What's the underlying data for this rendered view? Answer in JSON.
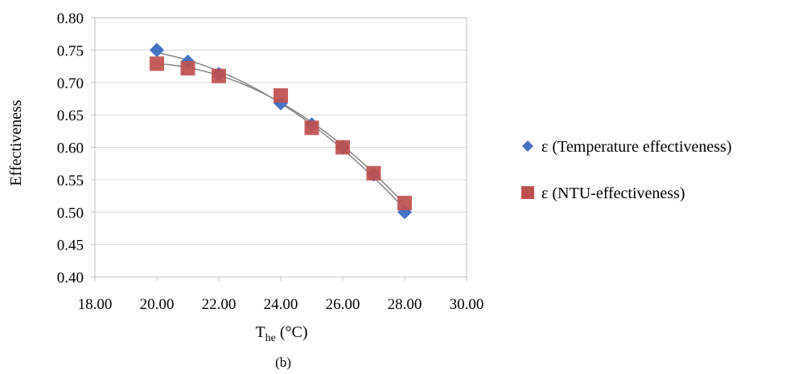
{
  "figure": {
    "caption": "(b)"
  },
  "chart_data": {
    "type": "scatter",
    "title": "",
    "xlabel": "T",
    "xlabel_sub": "he",
    "xlabel_unit": " (°C)",
    "ylabel": "Effectiveness",
    "xlim": [
      18,
      30
    ],
    "ylim": [
      0.4,
      0.8
    ],
    "x_ticks": [
      18,
      20,
      22,
      24,
      26,
      28,
      30
    ],
    "y_ticks": [
      0.4,
      0.45,
      0.5,
      0.55,
      0.6,
      0.65,
      0.7,
      0.75,
      0.8
    ],
    "x_tick_labels": [
      "18.00",
      "20.00",
      "22.00",
      "24.00",
      "26.00",
      "28.00",
      "30.00"
    ],
    "y_tick_labels": [
      "0.40",
      "0.45",
      "0.50",
      "0.55",
      "0.60",
      "0.65",
      "0.70",
      "0.75",
      "0.80"
    ],
    "legend_position": "right",
    "series": [
      {
        "name": "ε (Temperature effectiveness)",
        "marker": "diamond",
        "color": "#4472c4",
        "x": [
          20,
          21,
          22,
          24,
          25,
          26,
          27,
          28
        ],
        "y": [
          0.75,
          0.732,
          0.713,
          0.668,
          0.635,
          0.6,
          0.558,
          0.5
        ]
      },
      {
        "name": "ε (NTU-effectiveness)",
        "marker": "square",
        "color": "#c0504d",
        "x": [
          20,
          21,
          22,
          24,
          25,
          26,
          27,
          28
        ],
        "y": [
          0.729,
          0.722,
          0.71,
          0.68,
          0.63,
          0.6,
          0.56,
          0.514
        ]
      }
    ]
  }
}
